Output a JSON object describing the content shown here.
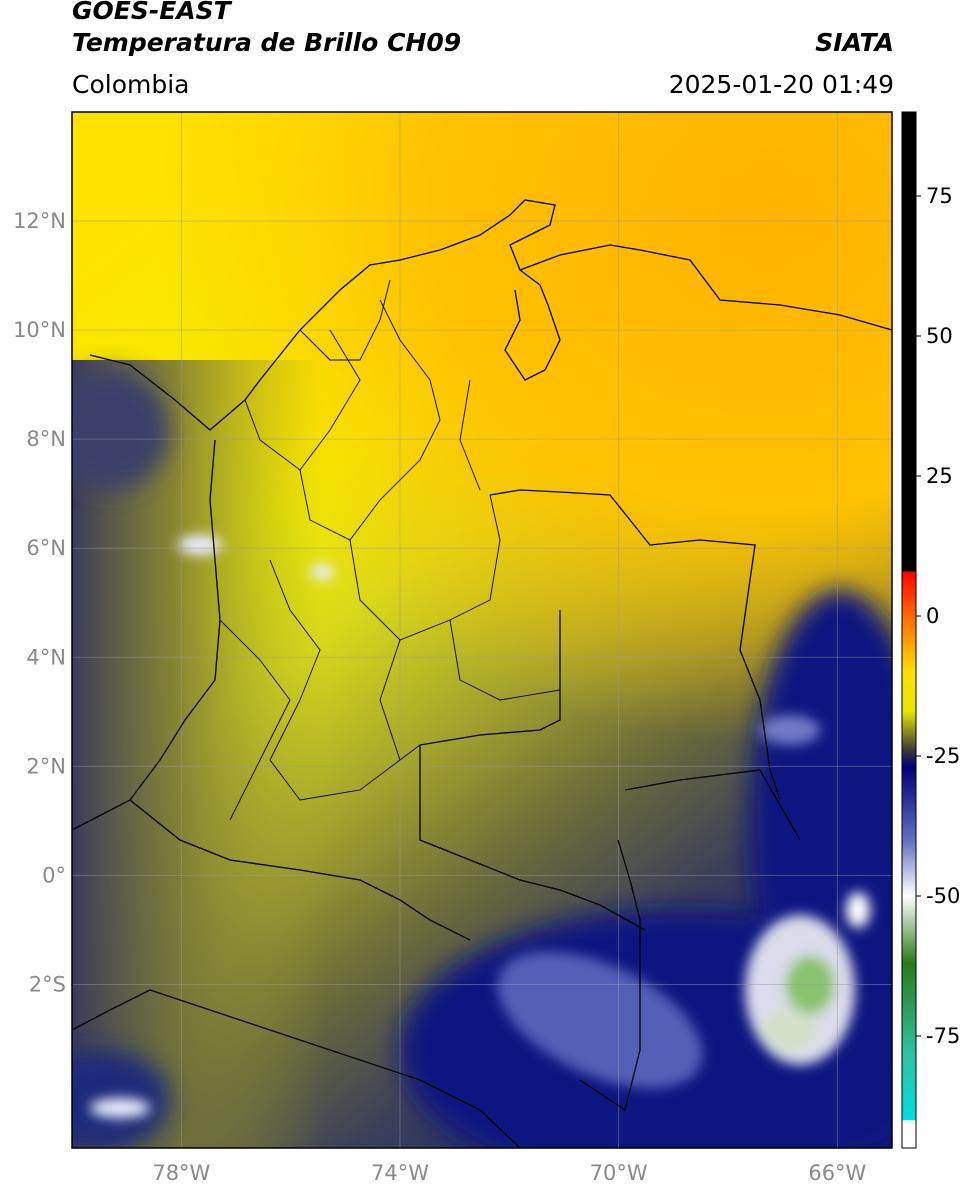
{
  "header": {
    "satellite": "GOES-EAST",
    "product": "Temperatura de Brillo CH09",
    "region": "Colombia",
    "agency": "SIATA",
    "datetime": "2025-01-20 01:49"
  },
  "map": {
    "lon_range": [
      -80.0,
      -65.0
    ],
    "lat_range": [
      -5.0,
      14.0
    ],
    "grid": true,
    "lat_ticks": [
      {
        "value": 12,
        "label": "12°N"
      },
      {
        "value": 10,
        "label": "10°N"
      },
      {
        "value": 8,
        "label": "8°N"
      },
      {
        "value": 6,
        "label": "6°N"
      },
      {
        "value": 4,
        "label": "4°N"
      },
      {
        "value": 2,
        "label": "2°N"
      },
      {
        "value": 0,
        "label": "0°"
      },
      {
        "value": -2,
        "label": "2°S"
      }
    ],
    "lon_ticks": [
      {
        "value": -78,
        "label": "78°W"
      },
      {
        "value": -74,
        "label": "74°W"
      },
      {
        "value": -70,
        "label": "70°W"
      },
      {
        "value": -66,
        "label": "66°W"
      }
    ]
  },
  "colorbar": {
    "range": [
      -95,
      90
    ],
    "ticks": [
      {
        "value": 75,
        "label": "75"
      },
      {
        "value": 50,
        "label": "50"
      },
      {
        "value": 25,
        "label": "25"
      },
      {
        "value": 0,
        "label": "0"
      },
      {
        "value": -25,
        "label": "-25"
      },
      {
        "value": -50,
        "label": "-50"
      },
      {
        "value": -75,
        "label": "-75"
      }
    ],
    "stops": [
      {
        "value": 90,
        "color": "#000000"
      },
      {
        "value": 8,
        "color": "#000000"
      },
      {
        "value": 7.9,
        "color": "#ff0000"
      },
      {
        "value": 0,
        "color": "#ff6a00"
      },
      {
        "value": -10,
        "color": "#ffe000"
      },
      {
        "value": -17,
        "color": "#e6e600"
      },
      {
        "value": -24,
        "color": "#3a3a3a"
      },
      {
        "value": -27,
        "color": "#00007a"
      },
      {
        "value": -40,
        "color": "#6070c0"
      },
      {
        "value": -50,
        "color": "#ffffff"
      },
      {
        "value": -62,
        "color": "#2a7a1a"
      },
      {
        "value": -78,
        "color": "#30c0a0"
      },
      {
        "value": -90,
        "color": "#00e0e0"
      },
      {
        "value": -90.1,
        "color": "#ffffff"
      },
      {
        "value": -95,
        "color": "#ffffff"
      }
    ]
  }
}
